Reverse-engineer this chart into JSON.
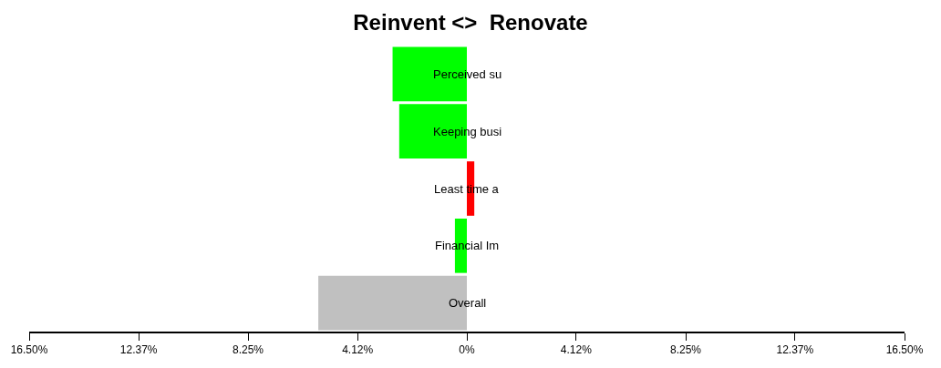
{
  "chart_data": {
    "type": "bar",
    "orientation": "horizontal",
    "title": "Reinvent <>  Renovate",
    "categories": [
      "Perceived su",
      "Keeping busi",
      "Least time a",
      "Financial Im",
      "Overall"
    ],
    "values": [
      -2.8,
      -2.55,
      0.28,
      -0.45,
      -5.6
    ],
    "colors": [
      "#00ff00",
      "#00ff00",
      "#ff0000",
      "#00ff00",
      "#c0c0c0"
    ],
    "xlim": [
      -16.5,
      16.5
    ],
    "xticks": [
      {
        "value": -16.5,
        "label": "16.50%"
      },
      {
        "value": -12.37,
        "label": "12.37%"
      },
      {
        "value": -8.25,
        "label": "8.25%"
      },
      {
        "value": -4.12,
        "label": "4.12%"
      },
      {
        "value": 0,
        "label": "0%"
      },
      {
        "value": 4.12,
        "label": "4.12%"
      },
      {
        "value": 8.25,
        "label": "8.25%"
      },
      {
        "value": 12.37,
        "label": "12.37%"
      },
      {
        "value": 16.5,
        "label": "16.50%"
      }
    ],
    "tick_labels": "x"
  }
}
